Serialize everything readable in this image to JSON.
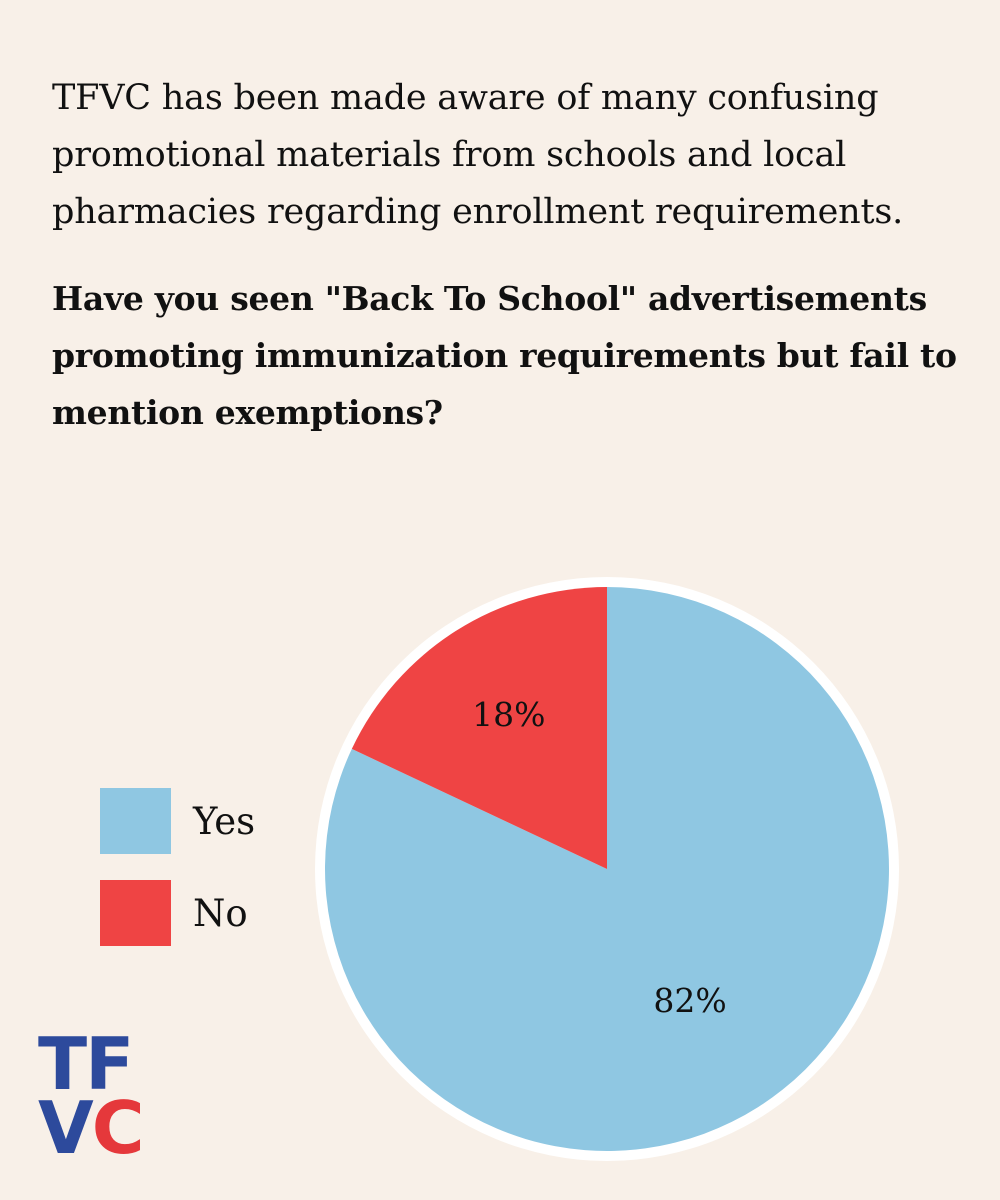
{
  "intro_text": "TFVC has been made aware of many confusing promotional materials from schools and local pharmacies regarding enrollment requirements.",
  "question_text": "Have you seen \"Back To School\" advertisements promoting immunization requirements but fail to mention exemptions?",
  "colors": {
    "background": "#f8f0e8",
    "yes": "#8fc7e2",
    "no": "#ef4444",
    "logo_blue": "#2d4a9c",
    "logo_red": "#e5383b"
  },
  "logo": {
    "line1": "TF",
    "line2_v": "V",
    "line2_c": "C"
  },
  "chart_data": {
    "type": "pie",
    "title": "",
    "legend_position": "left",
    "series": [
      {
        "name": "Yes",
        "value": 82,
        "label": "82%",
        "color": "#8fc7e2"
      },
      {
        "name": "No",
        "value": 18,
        "label": "18%",
        "color": "#ef4444"
      }
    ]
  }
}
